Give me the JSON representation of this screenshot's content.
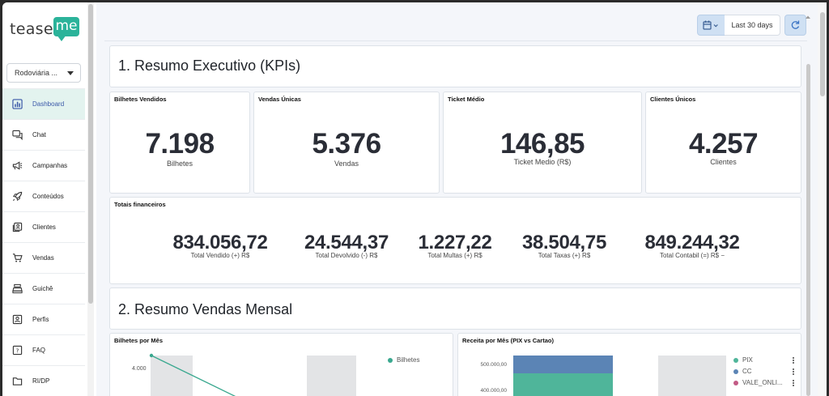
{
  "brand": {
    "logo_left": "teaser",
    "logo_right": "me",
    "accent": "#2bb39a"
  },
  "store_selector": {
    "value": "Rodoviária ..."
  },
  "sidebar": {
    "items": [
      {
        "label": "Dashboard",
        "icon": "chart-bar-icon",
        "active": true
      },
      {
        "label": "Chat",
        "icon": "chat-icon"
      },
      {
        "label": "Campanhas",
        "icon": "megaphone-icon"
      },
      {
        "label": "Conteúdos",
        "icon": "rocket-icon"
      },
      {
        "label": "Clientes",
        "icon": "contacts-icon"
      },
      {
        "label": "Vendas",
        "icon": "cart-icon"
      },
      {
        "label": "Guichê",
        "icon": "cash-register-icon"
      },
      {
        "label": "Perfis",
        "icon": "profile-icon"
      },
      {
        "label": "FAQ",
        "icon": "help-icon"
      },
      {
        "label": "RI/DP",
        "icon": "folder-icon"
      }
    ]
  },
  "toolbar": {
    "date_range": "Last 30 days",
    "calendar_icon": "calendar-icon",
    "refresh_icon": "refresh-icon"
  },
  "section1": {
    "title": "1. Resumo Executivo (KPIs)",
    "kpis": [
      {
        "title": "Bilhetes Vendidos",
        "value": "7.198",
        "label": "Bilhetes"
      },
      {
        "title": "Vendas Únicas",
        "value": "5.376",
        "label": "Vendas"
      },
      {
        "title": "Ticket Médio",
        "value": "146,85",
        "label": "Ticket Medio (R$)"
      },
      {
        "title": "Clientes Únicos",
        "value": "4.257",
        "label": "Clientes"
      }
    ],
    "financial": {
      "title": "Totais financeiros",
      "items": [
        {
          "value": "834.056,72",
          "label": "Total Vendido (+) R$"
        },
        {
          "value": "24.544,37",
          "label": "Total Devolvido (-) R$"
        },
        {
          "value": "1.227,22",
          "label": "Total Multas (+) R$"
        },
        {
          "value": "38.504,75",
          "label": "Total Taxas (+) R$"
        },
        {
          "value": "849.244,32",
          "label": "Total Contabil (=) R$ −"
        }
      ]
    }
  },
  "section2": {
    "title": "2. Resumo Vendas Mensal",
    "chart_bilhetes": {
      "title": "Bilhetes por Mês",
      "y_tick": "4.000",
      "legend": [
        {
          "name": "Bilhetes",
          "color": "#3aa88f"
        }
      ]
    },
    "chart_receita": {
      "title": "Receita por Mês (PIX vs Cartao)",
      "y_ticks": [
        "500.000,00",
        "400.000,00"
      ],
      "legend": [
        {
          "name": "PIX",
          "color": "#4fb59a"
        },
        {
          "name": "CC",
          "color": "#5b84b5"
        },
        {
          "name": "VALE_ONLI...",
          "color": "#c25a85"
        }
      ]
    }
  }
}
